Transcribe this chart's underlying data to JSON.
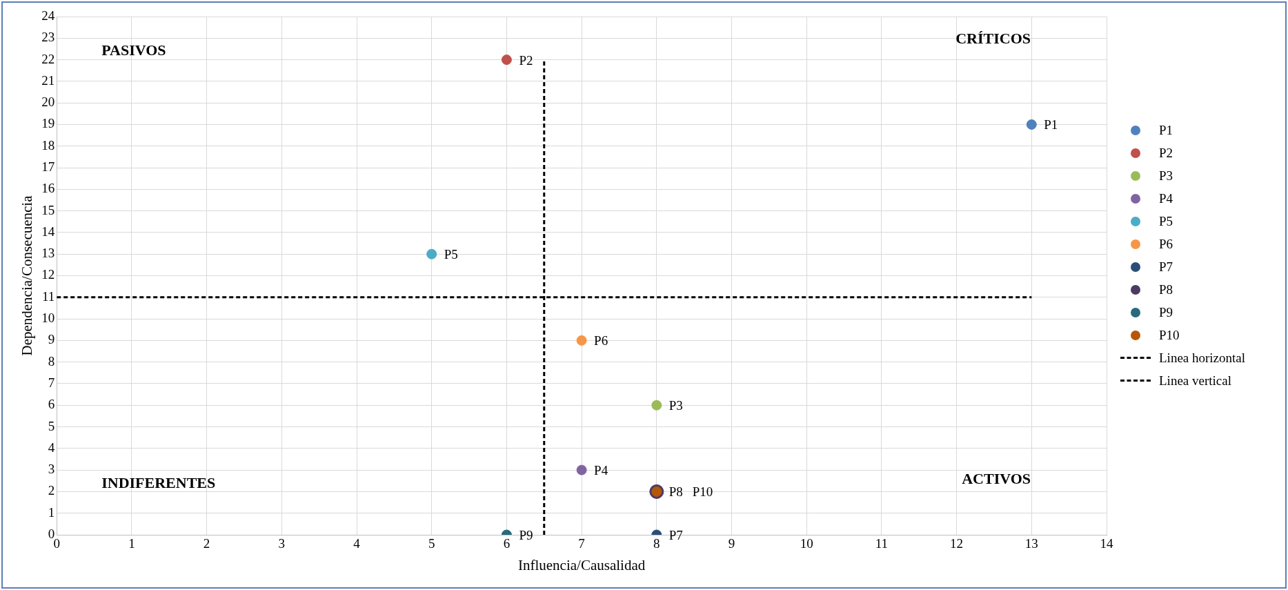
{
  "chart_data": {
    "type": "scatter",
    "xlabel": "Influencia/Causalidad",
    "ylabel": "Dependencia/Consecuencia",
    "xlim": [
      0,
      14
    ],
    "xticks": [
      0,
      1,
      2,
      3,
      4,
      5,
      6,
      7,
      8,
      9,
      10,
      11,
      12,
      13,
      14
    ],
    "ylim": [
      0,
      24
    ],
    "yticks": [
      0,
      1,
      2,
      3,
      4,
      5,
      6,
      7,
      8,
      9,
      10,
      11,
      12,
      13,
      14,
      15,
      16,
      17,
      18,
      19,
      20,
      21,
      22,
      23,
      24
    ],
    "grid": true,
    "legend": "right",
    "marker": "circle",
    "annotations": [
      "PASIVOS",
      "CRÍTICOS",
      "INDIFERENTES",
      "ACTIVOS"
    ],
    "series": [
      {
        "name": "P1",
        "color": "#4f81bd",
        "x": [
          13
        ],
        "values": [
          19
        ]
      },
      {
        "name": "P2",
        "color": "#c0504d",
        "x": [
          6
        ],
        "values": [
          22
        ]
      },
      {
        "name": "P3",
        "color": "#9bbb59",
        "x": [
          8
        ],
        "values": [
          6
        ]
      },
      {
        "name": "P4",
        "color": "#8064a2",
        "x": [
          7
        ],
        "values": [
          3
        ]
      },
      {
        "name": "P5",
        "color": "#4bacc6",
        "x": [
          5
        ],
        "values": [
          13
        ]
      },
      {
        "name": "P6",
        "color": "#f79646",
        "x": [
          7
        ],
        "values": [
          9
        ]
      },
      {
        "name": "P7",
        "color": "#2c4d75",
        "x": [
          8
        ],
        "values": [
          0
        ]
      },
      {
        "name": "P8",
        "color": "#4d3b62",
        "x": [
          8
        ],
        "values": [
          2
        ]
      },
      {
        "name": "P9",
        "color": "#276a7c",
        "x": [
          6
        ],
        "values": [
          0
        ]
      },
      {
        "name": "P10",
        "color": "#b65708",
        "x": [
          8
        ],
        "values": [
          2
        ]
      },
      {
        "name": "Linea horizontal",
        "type": "line",
        "marker": "none",
        "line_style": "dashed",
        "color": "#000000",
        "x": [
          0,
          13
        ],
        "values": [
          11,
          11
        ]
      },
      {
        "name": "Linea vertical",
        "type": "line",
        "marker": "none",
        "line_style": "dashed",
        "color": "#000000",
        "x": [
          6.5,
          6.5
        ],
        "values": [
          0,
          22
        ]
      }
    ]
  }
}
